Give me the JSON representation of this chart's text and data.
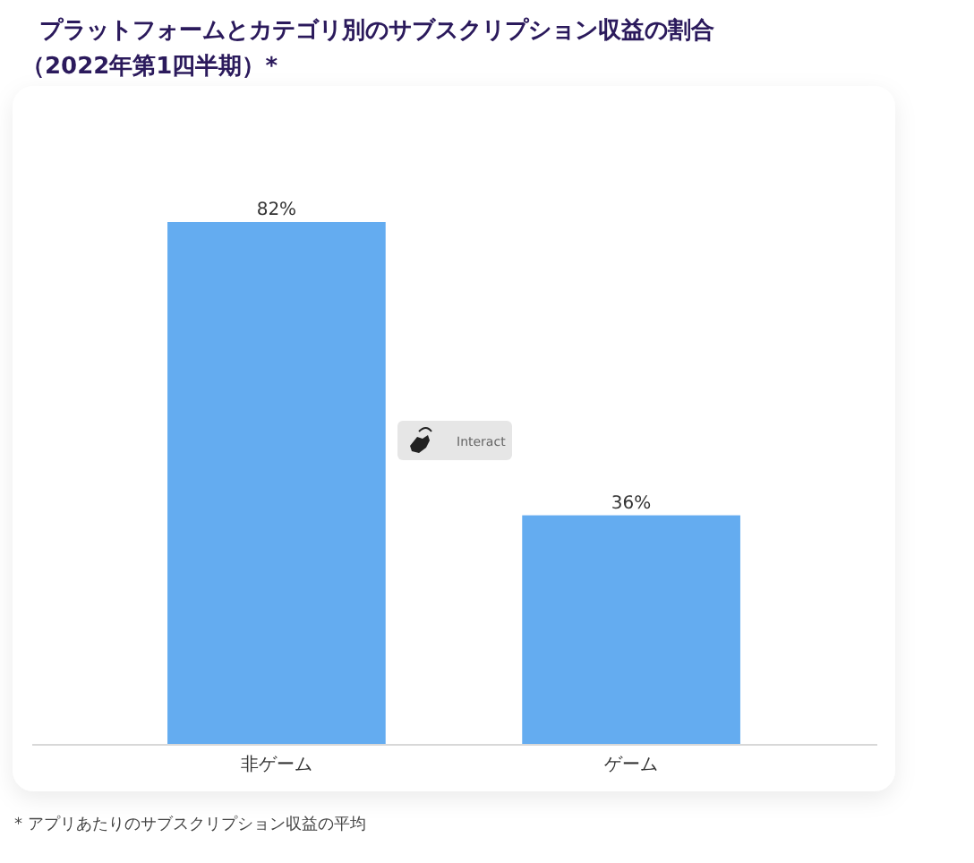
{
  "chart_data": {
    "type": "bar",
    "title": "プラットフォームとカテゴリ別のサブスクリプション収益の割合",
    "subtitle": "（2022年第1四半期）*",
    "categories": [
      "非ゲーム",
      "ゲーム"
    ],
    "values": [
      82,
      36
    ],
    "value_labels": [
      "82%",
      "36%"
    ],
    "color": "#64acf0",
    "annotations": [
      "Interact",
      "* アプリあたりのサブスクリプション収益の平均"
    ]
  }
}
